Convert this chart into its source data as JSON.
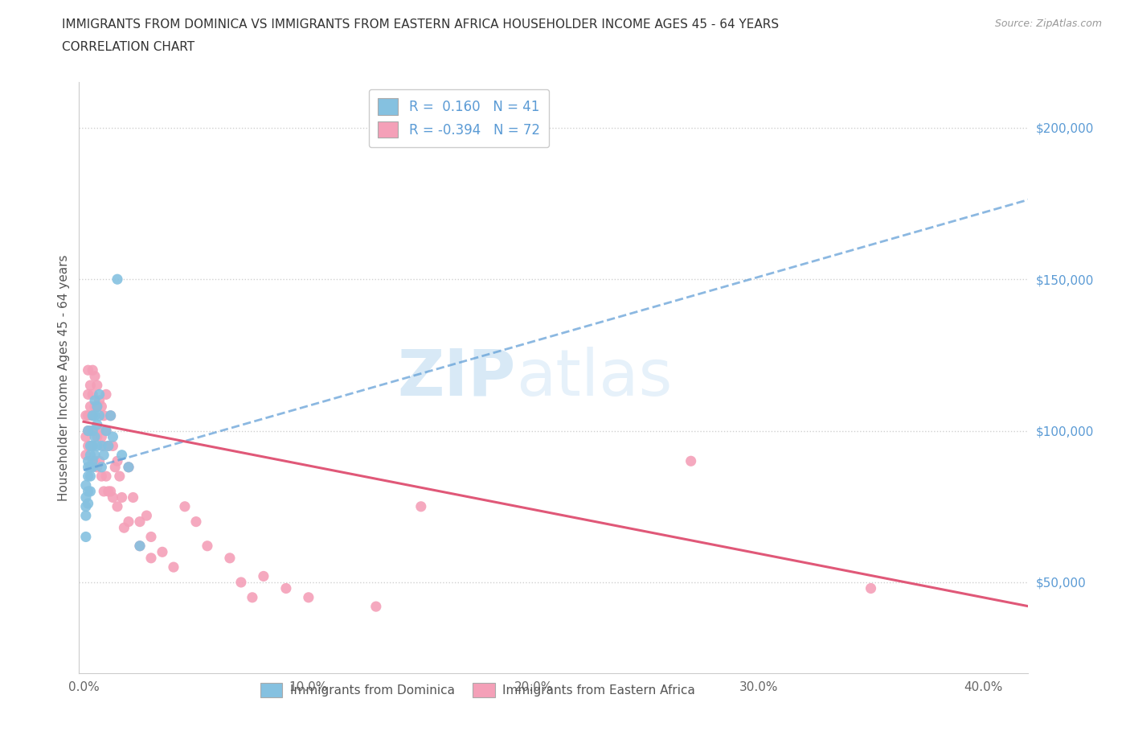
{
  "title_line1": "IMMIGRANTS FROM DOMINICA VS IMMIGRANTS FROM EASTERN AFRICA HOUSEHOLDER INCOME AGES 45 - 64 YEARS",
  "title_line2": "CORRELATION CHART",
  "source_text": "Source: ZipAtlas.com",
  "ylabel": "Householder Income Ages 45 - 64 years",
  "xlim": [
    -0.002,
    0.42
  ],
  "ylim": [
    20000,
    215000
  ],
  "xticks": [
    0.0,
    0.1,
    0.2,
    0.3,
    0.4
  ],
  "xticklabels": [
    "0.0%",
    "10.0%",
    "20.0%",
    "30.0%",
    "40.0%"
  ],
  "yticks_right": [
    50000,
    100000,
    150000,
    200000
  ],
  "yticklabels_right": [
    "$50,000",
    "$100,000",
    "$150,000",
    "$200,000"
  ],
  "dominica_color": "#85c1e0",
  "eastern_africa_color": "#f4a0b8",
  "dominica_line_color": "#5b9bd5",
  "eastern_africa_line_color": "#e05878",
  "dominica_R": 0.16,
  "dominica_N": 41,
  "eastern_africa_R": -0.394,
  "eastern_africa_N": 72,
  "watermark_zip": "ZIP",
  "watermark_atlas": "atlas",
  "dominica_x": [
    0.001,
    0.001,
    0.001,
    0.001,
    0.001,
    0.002,
    0.002,
    0.002,
    0.002,
    0.002,
    0.002,
    0.003,
    0.003,
    0.003,
    0.003,
    0.003,
    0.004,
    0.004,
    0.004,
    0.004,
    0.004,
    0.005,
    0.005,
    0.005,
    0.005,
    0.006,
    0.006,
    0.006,
    0.007,
    0.007,
    0.008,
    0.008,
    0.009,
    0.01,
    0.011,
    0.012,
    0.013,
    0.015,
    0.017,
    0.02,
    0.025
  ],
  "dominica_y": [
    82000,
    78000,
    75000,
    72000,
    65000,
    90000,
    88000,
    85000,
    80000,
    76000,
    100000,
    95000,
    92000,
    88000,
    85000,
    80000,
    105000,
    100000,
    95000,
    90000,
    88000,
    110000,
    105000,
    98000,
    92000,
    108000,
    102000,
    95000,
    112000,
    105000,
    95000,
    88000,
    92000,
    100000,
    95000,
    105000,
    98000,
    150000,
    92000,
    88000,
    62000
  ],
  "eastern_africa_x": [
    0.001,
    0.001,
    0.001,
    0.002,
    0.002,
    0.002,
    0.002,
    0.002,
    0.003,
    0.003,
    0.003,
    0.003,
    0.003,
    0.004,
    0.004,
    0.004,
    0.004,
    0.005,
    0.005,
    0.005,
    0.005,
    0.006,
    0.006,
    0.006,
    0.006,
    0.007,
    0.007,
    0.007,
    0.008,
    0.008,
    0.008,
    0.009,
    0.009,
    0.009,
    0.01,
    0.01,
    0.01,
    0.011,
    0.011,
    0.012,
    0.012,
    0.013,
    0.013,
    0.014,
    0.015,
    0.015,
    0.016,
    0.017,
    0.018,
    0.02,
    0.02,
    0.022,
    0.025,
    0.025,
    0.028,
    0.03,
    0.03,
    0.035,
    0.04,
    0.045,
    0.05,
    0.055,
    0.065,
    0.07,
    0.075,
    0.08,
    0.09,
    0.1,
    0.13,
    0.15,
    0.27,
    0.35
  ],
  "eastern_africa_y": [
    105000,
    98000,
    92000,
    120000,
    112000,
    105000,
    100000,
    95000,
    115000,
    108000,
    100000,
    95000,
    88000,
    120000,
    112000,
    105000,
    95000,
    118000,
    108000,
    100000,
    90000,
    115000,
    108000,
    98000,
    88000,
    110000,
    100000,
    90000,
    108000,
    98000,
    85000,
    105000,
    95000,
    80000,
    112000,
    100000,
    85000,
    95000,
    80000,
    105000,
    80000,
    95000,
    78000,
    88000,
    90000,
    75000,
    85000,
    78000,
    68000,
    88000,
    70000,
    78000,
    70000,
    62000,
    72000,
    65000,
    58000,
    60000,
    55000,
    75000,
    70000,
    62000,
    58000,
    50000,
    45000,
    52000,
    48000,
    45000,
    42000,
    75000,
    90000,
    48000
  ]
}
